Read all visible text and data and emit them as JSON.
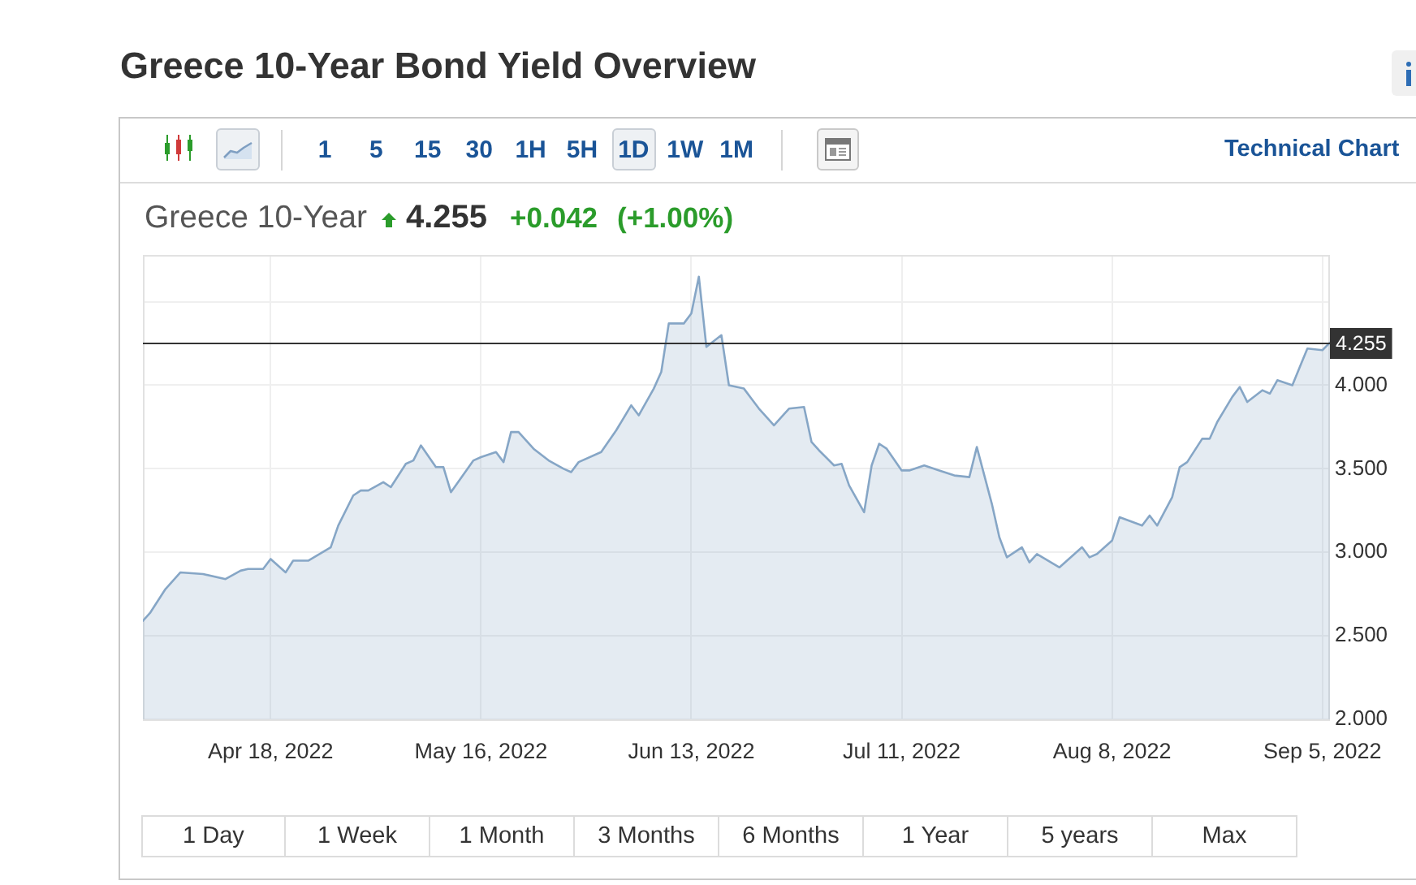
{
  "chart_data": {
    "type": "area",
    "title": "Greece 10-Year Bond Yield Overview",
    "subtitle": "Greece 10-Year",
    "annotations": [
      "4.255",
      "+0.042",
      "(+1.00%)",
      "1",
      "5",
      "15",
      "30",
      "1H",
      "5H",
      "1D",
      "1W",
      "1M",
      "Technical Chart",
      "1 Day",
      "1 Week",
      "1 Month",
      "3 Months",
      "6 Months",
      "1 Year",
      "5 years",
      "Max"
    ],
    "x": [
      "2022-04-01",
      "2022-04-02",
      "2022-04-04",
      "2022-04-06",
      "2022-04-09",
      "2022-04-12",
      "2022-04-14",
      "2022-04-15",
      "2022-04-17",
      "2022-04-18",
      "2022-04-20",
      "2022-04-21",
      "2022-04-23",
      "2022-04-26",
      "2022-04-27",
      "2022-04-29",
      "2022-04-30",
      "2022-05-01",
      "2022-05-03",
      "2022-05-04",
      "2022-05-06",
      "2022-05-07",
      "2022-05-08",
      "2022-05-10",
      "2022-05-11",
      "2022-05-12",
      "2022-05-15",
      "2022-05-16",
      "2022-05-18",
      "2022-05-19",
      "2022-05-20",
      "2022-05-21",
      "2022-05-23",
      "2022-05-25",
      "2022-05-27",
      "2022-05-28",
      "2022-05-29",
      "2022-06-01",
      "2022-06-03",
      "2022-06-05",
      "2022-06-06",
      "2022-06-08",
      "2022-06-09",
      "2022-06-10",
      "2022-06-12",
      "2022-06-13",
      "2022-06-14",
      "2022-06-15",
      "2022-06-17",
      "2022-06-18",
      "2022-06-20",
      "2022-06-21",
      "2022-06-22",
      "2022-06-24",
      "2022-06-26",
      "2022-06-28",
      "2022-06-29",
      "2022-06-30",
      "2022-07-02",
      "2022-07-03",
      "2022-07-04",
      "2022-07-06",
      "2022-07-07",
      "2022-07-08",
      "2022-07-09",
      "2022-07-11",
      "2022-07-12",
      "2022-07-14",
      "2022-07-16",
      "2022-07-18",
      "2022-07-20",
      "2022-07-21",
      "2022-07-23",
      "2022-07-24",
      "2022-07-25",
      "2022-07-27",
      "2022-07-28",
      "2022-07-29",
      "2022-08-01",
      "2022-08-02",
      "2022-08-04",
      "2022-08-05",
      "2022-08-06",
      "2022-08-08",
      "2022-08-09",
      "2022-08-12",
      "2022-08-13",
      "2022-08-14",
      "2022-08-16",
      "2022-08-17",
      "2022-08-18",
      "2022-08-20",
      "2022-08-21",
      "2022-08-22",
      "2022-08-24",
      "2022-08-25",
      "2022-08-26",
      "2022-08-28",
      "2022-08-29",
      "2022-08-30",
      "2022-09-01",
      "2022-09-02",
      "2022-09-03",
      "2022-09-05",
      "2022-09-06"
    ],
    "values": [
      2.59,
      2.64,
      2.78,
      2.88,
      2.87,
      2.84,
      2.89,
      2.9,
      2.9,
      2.96,
      2.88,
      2.95,
      2.95,
      3.03,
      3.16,
      3.34,
      3.37,
      3.37,
      3.42,
      3.39,
      3.53,
      3.55,
      3.64,
      3.51,
      3.51,
      3.36,
      3.55,
      3.57,
      3.6,
      3.54,
      3.72,
      3.72,
      3.62,
      3.55,
      3.5,
      3.48,
      3.54,
      3.6,
      3.73,
      3.88,
      3.82,
      3.98,
      4.08,
      4.37,
      4.37,
      4.43,
      4.65,
      4.23,
      4.3,
      4.0,
      3.98,
      3.92,
      3.86,
      3.76,
      3.86,
      3.87,
      3.66,
      3.61,
      3.52,
      3.53,
      3.4,
      3.24,
      3.52,
      3.65,
      3.62,
      3.49,
      3.49,
      3.52,
      3.49,
      3.46,
      3.45,
      3.63,
      3.29,
      3.09,
      2.97,
      3.03,
      2.94,
      2.99,
      2.91,
      2.95,
      3.03,
      2.97,
      2.99,
      3.07,
      3.21,
      3.16,
      3.22,
      3.16,
      3.33,
      3.51,
      3.54,
      3.68,
      3.68,
      3.78,
      3.93,
      3.99,
      3.9,
      3.97,
      3.95,
      4.03,
      4.0,
      4.11,
      4.22,
      4.21,
      4.255
    ],
    "color": "#86a6c6",
    "xlim": [
      "2022-04-01",
      "2022-09-06"
    ],
    "xticks": [
      {
        "value": "2022-04-18",
        "label": "Apr 18, 2022"
      },
      {
        "value": "2022-05-16",
        "label": "May 16, 2022"
      },
      {
        "value": "2022-06-13",
        "label": "Jun 13, 2022"
      },
      {
        "value": "2022-07-11",
        "label": "Jul 11, 2022"
      },
      {
        "value": "2022-08-08",
        "label": "Aug 8, 2022"
      },
      {
        "value": "2022-09-05",
        "label": "Sep 5, 2022"
      }
    ],
    "ylim": [
      2,
      4.78
    ],
    "yticks": [
      {
        "value": 2,
        "label": "2.000"
      },
      {
        "value": 2.5,
        "label": "2.500"
      },
      {
        "value": 3,
        "label": "3.000"
      },
      {
        "value": 3.5,
        "label": "3.500"
      },
      {
        "value": 4,
        "label": "4.000"
      },
      {
        "value": 4.5,
        "label": null
      }
    ],
    "grid": true,
    "ref_lines": [
      {
        "axis": "y",
        "value": 4.255,
        "label": "4.255",
        "color": "#333333"
      }
    ]
  }
}
